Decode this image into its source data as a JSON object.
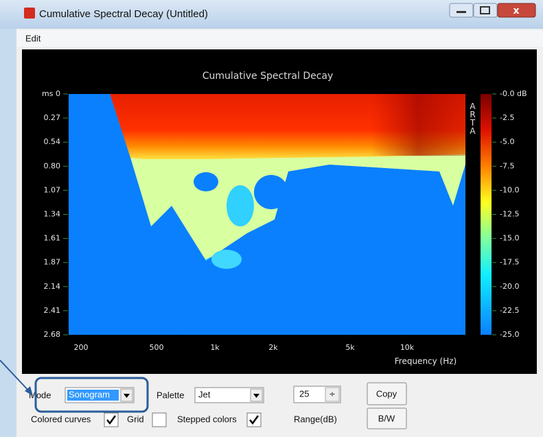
{
  "window": {
    "title": "Cumulative Spectral Decay  (Untitled)"
  },
  "menu": [
    "Edit"
  ],
  "plot": {
    "title": "Cumulative Spectral Decay",
    "y_ticks": [
      "ms 0",
      "0.27",
      "0.54",
      "0.80",
      "1.07",
      "1.34",
      "1.61",
      "1.87",
      "2.14",
      "2.41",
      "2.68"
    ],
    "x_ticks": [
      "200",
      "500",
      "1k",
      "2k",
      "5k",
      "10k"
    ],
    "x_label": "Frequency (Hz)",
    "colorbar_ticks": [
      "-0.0 dB",
      "-2.5",
      "-5.0",
      "-7.5",
      "-10.0",
      "-12.5",
      "-15.0",
      "-17.5",
      "-20.0",
      "-22.5",
      "-25.0"
    ],
    "watermark": "ARTA"
  },
  "controls": {
    "mode_label": "Mode",
    "mode_value": "Sonogram",
    "palette_label": "Palette",
    "palette_value": "Jet",
    "range_value": "25",
    "range_label": "Range(dB)",
    "copy": "Copy",
    "bw": "B/W",
    "checkboxes": [
      {
        "label": "Colored curves",
        "checked": true
      },
      {
        "label": "Grid",
        "checked": false
      },
      {
        "label": "Stepped colors",
        "checked": true
      }
    ]
  }
}
